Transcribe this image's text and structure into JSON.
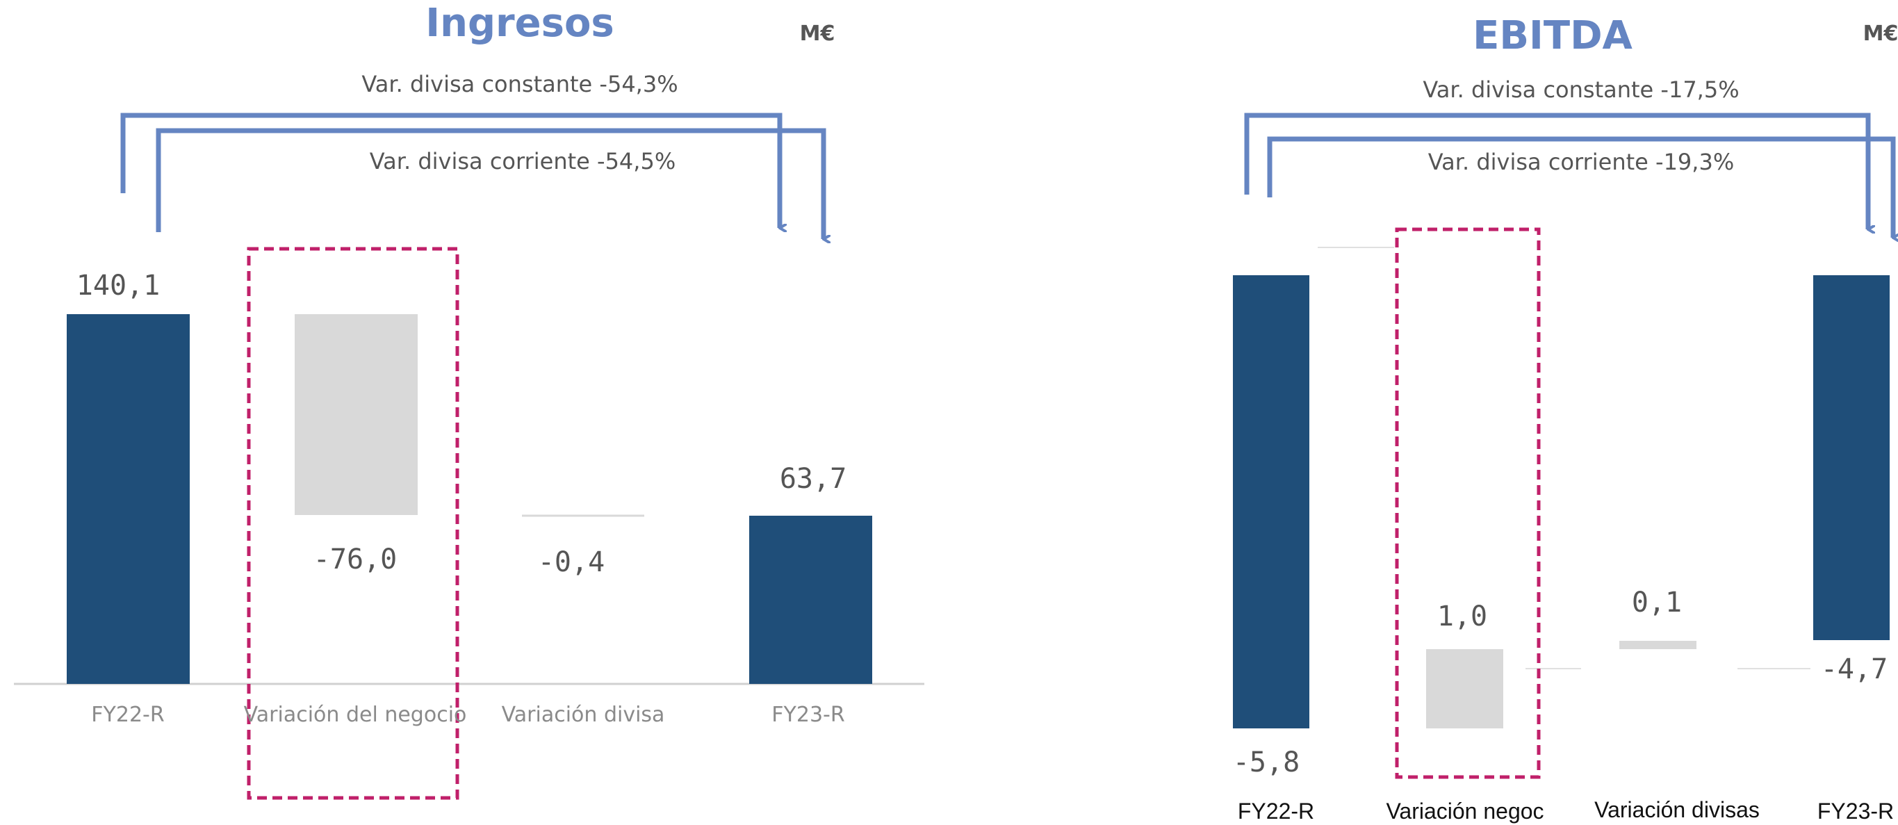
{
  "chart_data": [
    {
      "type": "bar",
      "title": "Ingresos",
      "unit": "M€",
      "variations": [
        "Var. divisa constante -54,3%",
        "Var. divisa corriente -54,5%"
      ],
      "categories": [
        "FY22-R",
        "Variación del negocio",
        "Variación divisa",
        "FY23-R"
      ],
      "values": [
        140.1,
        -76.0,
        -0.4,
        63.7
      ],
      "labels": [
        "140,1",
        "-76,0",
        "-0,4",
        "63,7"
      ],
      "roles": [
        "total",
        "delta",
        "delta",
        "total"
      ],
      "highlighted_category": "Variación del negocio",
      "colors": {
        "total": "#1f4e79",
        "delta": "#d9d9d9",
        "highlight": "#c0206a",
        "arrows": "#6585c2"
      }
    },
    {
      "type": "bar",
      "title": "EBITDA",
      "unit": "M€",
      "variations": [
        "Var. divisa constante -17,5%",
        "Var. divisa corriente -19,3%"
      ],
      "categories": [
        "FY22-R",
        "Variación negoc",
        "Variación divisas",
        "FY23-R"
      ],
      "values": [
        -5.8,
        1.0,
        0.1,
        -4.7
      ],
      "labels": [
        "-5,8",
        "1,0",
        "0,1",
        "-4,7"
      ],
      "roles": [
        "total",
        "delta",
        "delta",
        "total"
      ],
      "highlighted_category": "Variación negoc",
      "colors": {
        "total": "#1f4e79",
        "delta": "#d9d9d9",
        "highlight": "#c0206a",
        "arrows": "#6585c2"
      }
    }
  ]
}
